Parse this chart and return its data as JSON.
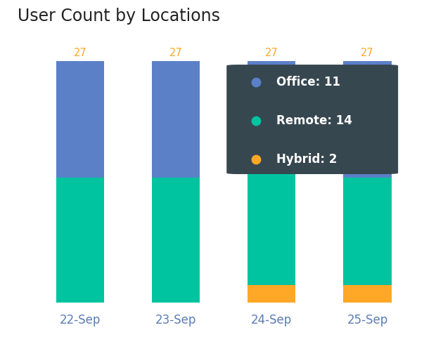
{
  "title": "User Count by Locations",
  "categories": [
    "22-Sep",
    "23-Sep",
    "24-Sep",
    "25-Sep"
  ],
  "office": [
    13,
    13,
    11,
    13
  ],
  "remote": [
    14,
    14,
    14,
    12
  ],
  "hybrid": [
    0,
    0,
    2,
    2
  ],
  "totals": [
    27,
    27,
    27,
    27
  ],
  "color_office": "#5B80C8",
  "color_remote": "#00C4A0",
  "color_hybrid": "#FFA726",
  "color_total_label": "#FFA726",
  "background_color": "#FFFFFF",
  "bar_width": 0.5,
  "ylim": [
    0,
    30
  ],
  "title_fontsize": 17,
  "tick_fontsize": 12,
  "tooltip_bg": "#37474F",
  "tooltip_text_color": "#FFFFFF",
  "tooltip_index": 2,
  "label_color": "#5B7DB5"
}
